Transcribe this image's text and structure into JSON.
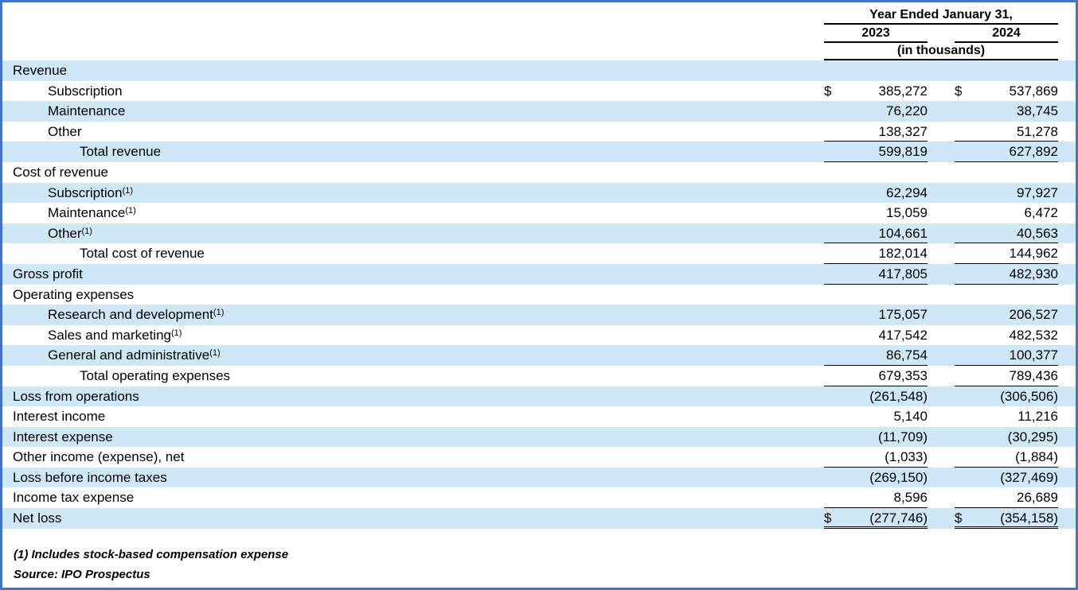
{
  "colors": {
    "stripe": "#cfe8f8",
    "frame_border": "#4472c4"
  },
  "header": {
    "period_label": "Year Ended January 31,",
    "col_2023": "2023",
    "col_2024": "2024",
    "units_label": "(in thousands)"
  },
  "rows": [
    {
      "label": "Revenue",
      "ind": 0,
      "v1": "",
      "v2": "",
      "u": ""
    },
    {
      "label": "Subscription",
      "ind": 1,
      "d": "$",
      "v1": "385,272",
      "v2": "537,869",
      "u": ""
    },
    {
      "label": "Maintenance",
      "ind": 1,
      "v1": "76,220",
      "v2": "38,745",
      "u": ""
    },
    {
      "label": "Other",
      "ind": 1,
      "v1": "138,327",
      "v2": "51,278",
      "u": "s"
    },
    {
      "label": "Total revenue",
      "ind": 2,
      "v1": "599,819",
      "v2": "627,892",
      "u": "s"
    },
    {
      "label": "Cost of revenue",
      "ind": 0,
      "v1": "",
      "v2": "",
      "u": ""
    },
    {
      "label": "Subscription",
      "sup": "(1)",
      "ind": 1,
      "v1": "62,294",
      "v2": "97,927",
      "u": ""
    },
    {
      "label": "Maintenance",
      "sup": "(1)",
      "ind": 1,
      "v1": "15,059",
      "v2": "6,472",
      "u": ""
    },
    {
      "label": "Other",
      "sup": "(1)",
      "ind": 1,
      "v1": "104,661",
      "v2": "40,563",
      "u": "s"
    },
    {
      "label": "Total cost of revenue",
      "ind": 2,
      "v1": "182,014",
      "v2": "144,962",
      "u": "s"
    },
    {
      "label": "Gross profit",
      "ind": 0,
      "v1": "417,805",
      "v2": "482,930",
      "u": "s"
    },
    {
      "label": "Operating expenses",
      "ind": 0,
      "v1": "",
      "v2": "",
      "u": ""
    },
    {
      "label": "Research and development",
      "sup": "(1)",
      "ind": 1,
      "v1": "175,057",
      "v2": "206,527",
      "u": ""
    },
    {
      "label": "Sales and marketing",
      "sup": "(1)",
      "ind": 1,
      "v1": "417,542",
      "v2": "482,532",
      "u": ""
    },
    {
      "label": "General and administrative",
      "sup": "(1)",
      "ind": 1,
      "v1": "86,754",
      "v2": "100,377",
      "u": "s"
    },
    {
      "label": "Total operating expenses",
      "ind": 2,
      "v1": "679,353",
      "v2": "789,436",
      "u": "s"
    },
    {
      "label": "Loss from operations",
      "ind": 0,
      "v1": "(261,548)",
      "v2": "(306,506)",
      "u": ""
    },
    {
      "label": "Interest income",
      "ind": 0,
      "v1": "5,140",
      "v2": "11,216",
      "u": ""
    },
    {
      "label": "Interest expense",
      "ind": 0,
      "v1": "(11,709)",
      "v2": "(30,295)",
      "u": ""
    },
    {
      "label": "Other income (expense), net",
      "ind": 0,
      "v1": "(1,033)",
      "v2": "(1,884)",
      "u": "s"
    },
    {
      "label": "Loss before income taxes",
      "ind": 0,
      "v1": "(269,150)",
      "v2": "(327,469)",
      "u": ""
    },
    {
      "label": "Income tax expense",
      "ind": 0,
      "v1": "8,596",
      "v2": "26,689",
      "u": "s"
    },
    {
      "label": "Net loss",
      "ind": 0,
      "d": "$",
      "v1": "(277,746)",
      "v2": "(354,158)",
      "u": "d"
    }
  ],
  "footnotes": {
    "note1": "(1) Includes stock-based compensation expense",
    "source": "Source: IPO Prospectus"
  }
}
